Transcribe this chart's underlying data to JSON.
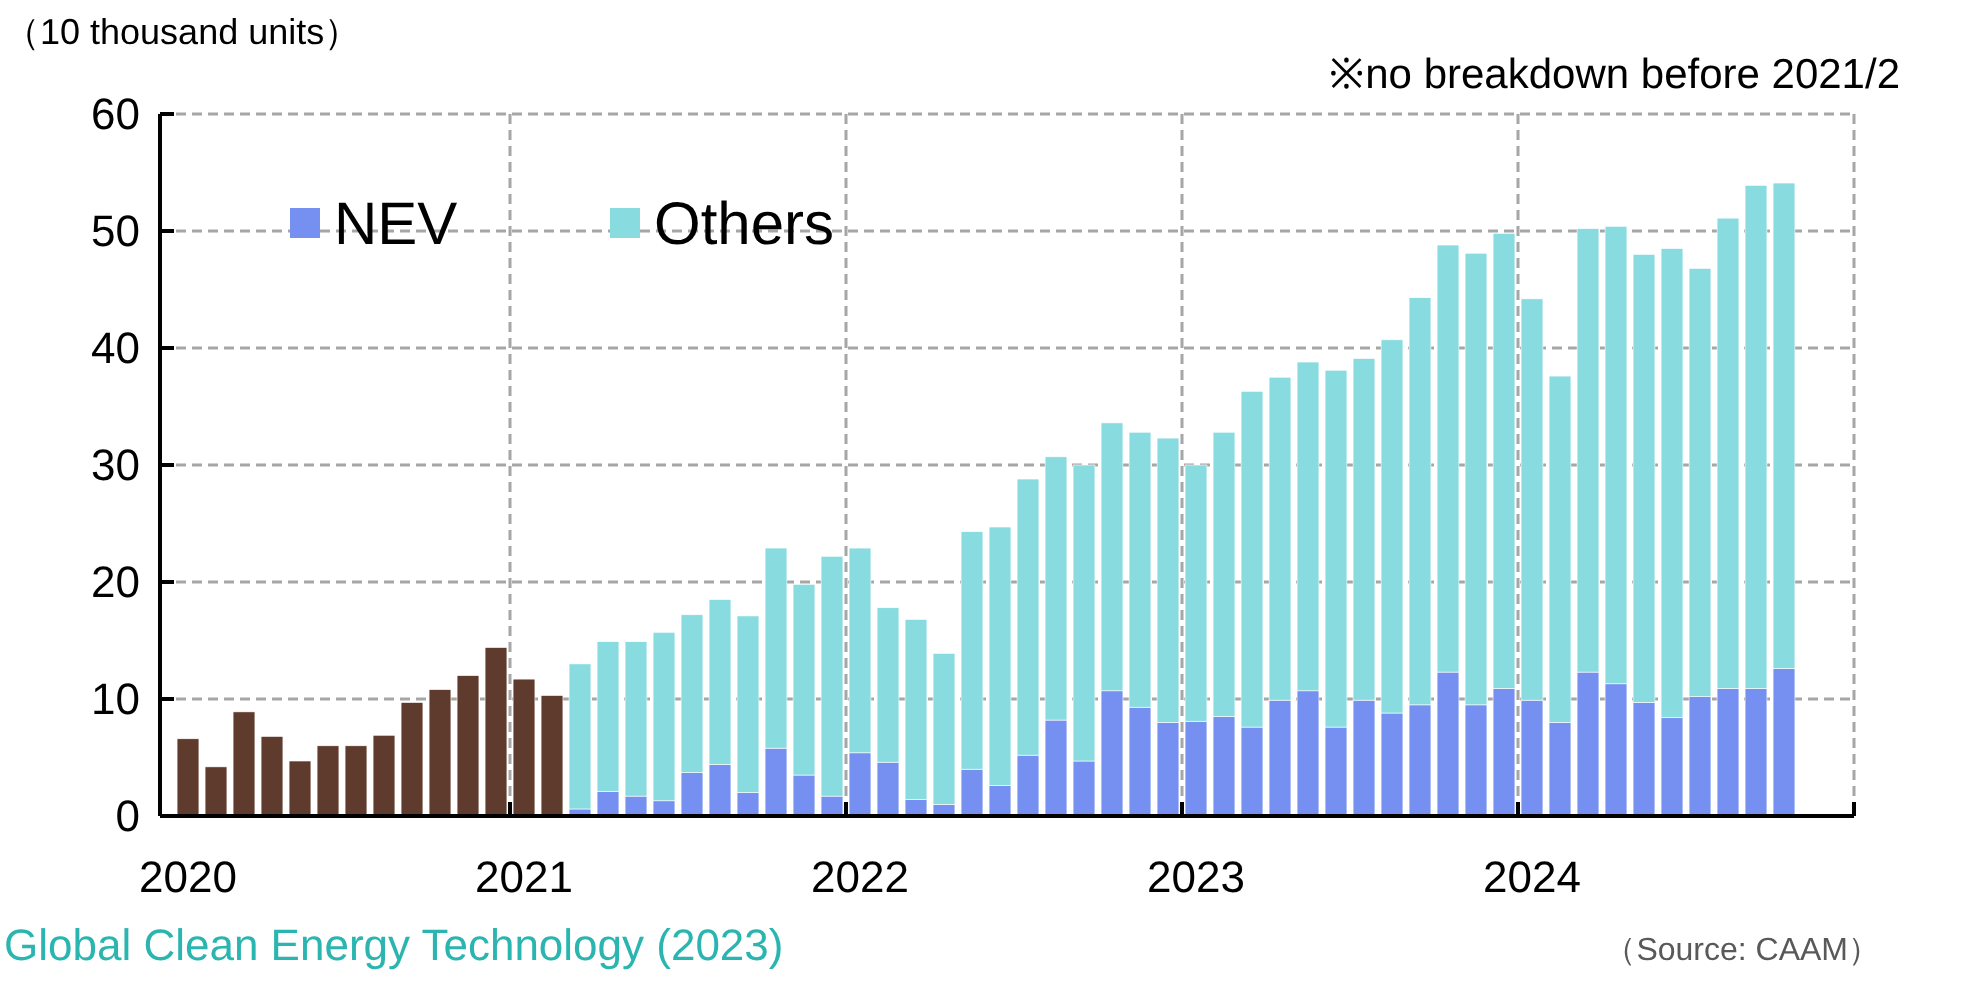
{
  "chart_data": {
    "type": "bar",
    "stacked": true,
    "ylabel": "（10 thousand units）",
    "annotations": [
      "※no breakdown before 2021/2",
      "（Source: CAAM）",
      "Global Clean Energy Technology (2023)"
    ],
    "categories": [
      "2020",
      null,
      null,
      null,
      null,
      null,
      null,
      null,
      null,
      null,
      null,
      null,
      "2021",
      null,
      null,
      null,
      null,
      null,
      null,
      null,
      null,
      null,
      null,
      null,
      "2022",
      null,
      null,
      null,
      null,
      null,
      null,
      null,
      null,
      null,
      null,
      null,
      "2023",
      null,
      null,
      null,
      null,
      null,
      null,
      null,
      null,
      null,
      null,
      null,
      "2024",
      null,
      null,
      null,
      null,
      null,
      null,
      null,
      null,
      null
    ],
    "series": [
      {
        "color": "#5e3b2c",
        "values": [
          6.6,
          4.2,
          8.9,
          6.8,
          4.7,
          6.0,
          6.0,
          6.9,
          9.7,
          10.8,
          12.0,
          14.4,
          11.7,
          10.3,
          null,
          null,
          null,
          null,
          null,
          null,
          null,
          null,
          null,
          null,
          null,
          null,
          null,
          null,
          null,
          null,
          null,
          null,
          null,
          null,
          null,
          null,
          null,
          null,
          null,
          null,
          null,
          null,
          null,
          null,
          null,
          null,
          null,
          null,
          null,
          null,
          null,
          null,
          null,
          null,
          null,
          null,
          null,
          null
        ]
      },
      {
        "name": "NEV",
        "color": "#7590f0",
        "values": [
          null,
          null,
          null,
          null,
          null,
          null,
          null,
          null,
          null,
          null,
          null,
          null,
          null,
          null,
          0.6,
          2.1,
          1.7,
          1.3,
          3.7,
          4.4,
          2.0,
          5.8,
          3.5,
          1.7,
          5.4,
          4.6,
          1.4,
          1.0,
          4.0,
          2.6,
          5.2,
          8.2,
          4.7,
          10.7,
          9.3,
          8.0,
          8.1,
          8.5,
          7.6,
          9.9,
          10.7,
          7.6,
          9.9,
          8.8,
          9.5,
          12.3,
          9.5,
          10.9,
          9.9,
          8.0,
          12.3,
          11.3,
          9.7,
          8.4,
          10.2,
          10.9,
          10.9,
          12.6
        ]
      },
      {
        "name": "Others",
        "color": "#88dce0",
        "values": [
          null,
          null,
          null,
          null,
          null,
          null,
          null,
          null,
          null,
          null,
          null,
          null,
          null,
          null,
          12.4,
          12.8,
          13.2,
          14.4,
          13.5,
          14.1,
          15.1,
          17.1,
          16.3,
          20.5,
          17.5,
          13.2,
          15.4,
          12.9,
          20.3,
          22.1,
          23.6,
          22.5,
          25.3,
          22.9,
          23.5,
          24.3,
          21.9,
          24.3,
          28.7,
          27.6,
          28.1,
          30.5,
          29.2,
          31.9,
          34.8,
          36.5,
          38.6,
          38.9,
          34.3,
          29.6,
          37.9,
          39.1,
          38.3,
          40.1,
          36.6,
          40.2,
          43.0,
          41.5
        ]
      }
    ],
    "ylim": [
      0,
      60
    ],
    "yticks": [
      0,
      10,
      20,
      30,
      40,
      50,
      60
    ],
    "grid": true,
    "legend": "top left"
  }
}
